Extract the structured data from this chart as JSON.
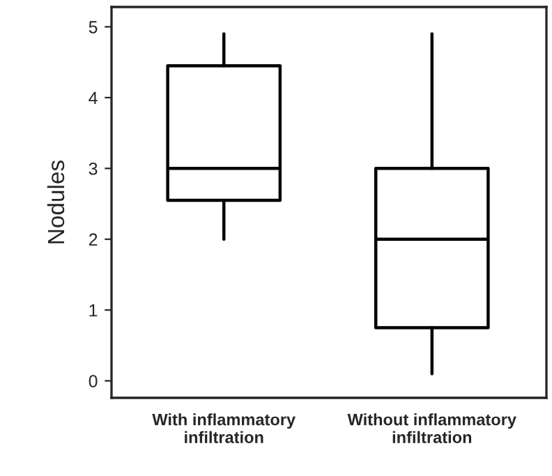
{
  "chart_data": {
    "type": "box",
    "ylabel": "Nodules",
    "categories": [
      "With inflammatory\ninfiltration",
      "Without inflammatory\ninfiltration"
    ],
    "boxes": [
      {
        "low": 2.0,
        "q1": 2.55,
        "median": 3.0,
        "q3": 4.45,
        "high": 4.9
      },
      {
        "low": 0.1,
        "q1": 0.75,
        "median": 2.0,
        "q3": 3.0,
        "high": 4.9
      }
    ],
    "ylim": [
      -0.24,
      5.28
    ],
    "yticks": [
      0,
      1,
      2,
      3,
      4,
      5
    ],
    "grid": false
  }
}
